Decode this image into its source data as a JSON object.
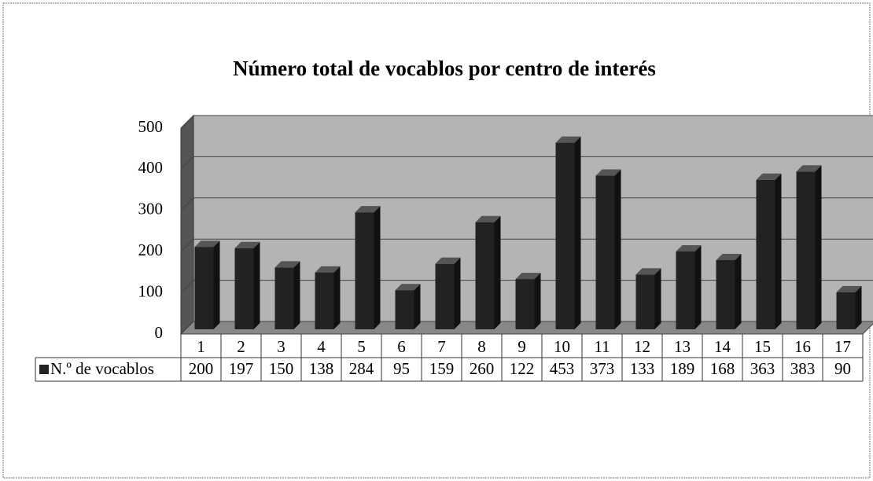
{
  "chart_data": {
    "type": "bar",
    "title": "Número total de vocablos por centro de interés",
    "categories": [
      "1",
      "2",
      "3",
      "4",
      "5",
      "6",
      "7",
      "8",
      "9",
      "10",
      "11",
      "12",
      "13",
      "14",
      "15",
      "16",
      "17"
    ],
    "series": [
      {
        "name": "N.º de vocablos",
        "color": "#222222",
        "values": [
          200,
          197,
          150,
          138,
          284,
          95,
          159,
          260,
          122,
          453,
          373,
          133,
          189,
          168,
          363,
          383,
          90
        ]
      }
    ],
    "ylim": [
      0,
      500
    ],
    "yticks": [
      0,
      100,
      200,
      300,
      400,
      500
    ],
    "grid": true
  }
}
